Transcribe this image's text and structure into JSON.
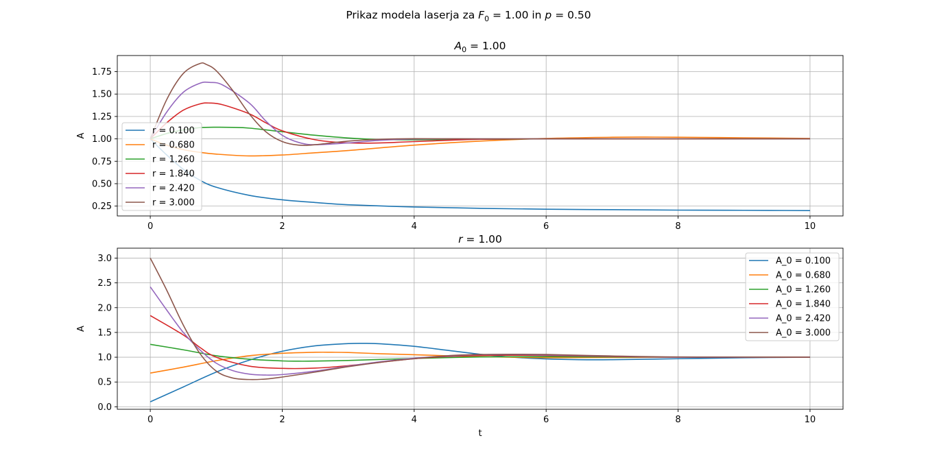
{
  "figure": {
    "suptitle_prefix": "Prikaz modela laserja za ",
    "suptitle_math_1": "F",
    "suptitle_sub_1": "0",
    "suptitle_mid": " = 1.00 in ",
    "suptitle_math_2": "p",
    "suptitle_end": " = 0.50"
  },
  "chart_data": [
    {
      "type": "line",
      "title_math": "A",
      "title_sub": "0",
      "title_rest": " = 1.00",
      "xlabel": "",
      "ylabel": "A",
      "xlim": [
        -0.5,
        10.5
      ],
      "ylim": [
        0.14,
        1.93
      ],
      "x_ticks": [
        0,
        2,
        4,
        6,
        8,
        10
      ],
      "y_ticks": [
        0.25,
        0.5,
        0.75,
        1.0,
        1.25,
        1.5,
        1.75
      ],
      "x_tick_labels": [
        "0",
        "2",
        "4",
        "6",
        "8",
        "10"
      ],
      "y_tick_labels": [
        "0.25",
        "0.50",
        "0.75",
        "1.00",
        "1.25",
        "1.50",
        "1.75"
      ],
      "grid": true,
      "legend_position": "center-left",
      "series": [
        {
          "name": "r = 0.100",
          "color": "#1f77b4",
          "x": [
            0,
            0.25,
            0.5,
            0.75,
            1,
            1.5,
            2,
            2.5,
            3,
            4,
            5,
            6,
            7,
            8,
            9,
            10
          ],
          "y": [
            1.0,
            0.82,
            0.66,
            0.54,
            0.46,
            0.37,
            0.32,
            0.29,
            0.265,
            0.24,
            0.225,
            0.215,
            0.21,
            0.205,
            0.203,
            0.2
          ]
        },
        {
          "name": "r = 0.680",
          "color": "#ff7f0e",
          "x": [
            0,
            0.25,
            0.5,
            0.75,
            1,
            1.5,
            2,
            2.5,
            3,
            4,
            5,
            6,
            7,
            7.5,
            8,
            9,
            10
          ],
          "y": [
            1.0,
            0.93,
            0.88,
            0.85,
            0.83,
            0.81,
            0.82,
            0.845,
            0.87,
            0.93,
            0.975,
            1.005,
            1.018,
            1.02,
            1.018,
            1.012,
            1.005
          ]
        },
        {
          "name": "r = 1.260",
          "color": "#2ca02c",
          "x": [
            0,
            0.25,
            0.5,
            0.75,
            1,
            1.25,
            1.5,
            2,
            2.5,
            3,
            3.5,
            4,
            5,
            6,
            7,
            8,
            10
          ],
          "y": [
            1.0,
            1.06,
            1.1,
            1.125,
            1.13,
            1.128,
            1.12,
            1.08,
            1.04,
            1.01,
            0.993,
            0.99,
            0.995,
            1.0,
            1.0,
            1.0,
            1.0
          ]
        },
        {
          "name": "r = 1.840",
          "color": "#d62728",
          "x": [
            0,
            0.25,
            0.5,
            0.75,
            0.9,
            1.1,
            1.5,
            1.75,
            2,
            2.5,
            3,
            3.5,
            4,
            5,
            6,
            8,
            10
          ],
          "y": [
            1.0,
            1.18,
            1.32,
            1.39,
            1.4,
            1.38,
            1.28,
            1.18,
            1.09,
            0.99,
            0.955,
            0.955,
            0.97,
            0.995,
            1.0,
            1.0,
            1.0
          ]
        },
        {
          "name": "r = 2.420",
          "color": "#9467bd",
          "x": [
            0,
            0.25,
            0.5,
            0.75,
            0.9,
            1.1,
            1.5,
            1.75,
            2,
            2.25,
            2.5,
            3,
            3.5,
            4,
            5,
            6,
            8,
            10
          ],
          "y": [
            1.0,
            1.3,
            1.52,
            1.62,
            1.63,
            1.6,
            1.4,
            1.2,
            1.04,
            0.96,
            0.935,
            0.955,
            0.985,
            0.998,
            1.0,
            1.0,
            1.0,
            1.0
          ]
        },
        {
          "name": "r = 3.000",
          "color": "#8c564b",
          "x": [
            0,
            0.25,
            0.5,
            0.75,
            0.85,
            1,
            1.25,
            1.5,
            1.75,
            2,
            2.25,
            2.5,
            3,
            3.5,
            4,
            5,
            6,
            8,
            10
          ],
          "y": [
            1.0,
            1.44,
            1.73,
            1.84,
            1.83,
            1.76,
            1.54,
            1.28,
            1.08,
            0.97,
            0.93,
            0.935,
            0.975,
            0.995,
            1.002,
            1.0,
            1.0,
            1.0,
            1.0
          ]
        }
      ]
    },
    {
      "type": "line",
      "title_math": "r",
      "title_sub": "",
      "title_rest": " = 1.00",
      "xlabel": "t",
      "ylabel": "A",
      "xlim": [
        -0.5,
        10.5
      ],
      "ylim": [
        -0.05,
        3.2
      ],
      "x_ticks": [
        0,
        2,
        4,
        6,
        8,
        10
      ],
      "y_ticks": [
        0.0,
        0.5,
        1.0,
        1.5,
        2.0,
        2.5,
        3.0
      ],
      "x_tick_labels": [
        "0",
        "2",
        "4",
        "6",
        "8",
        "10"
      ],
      "y_tick_labels": [
        "0.0",
        "0.5",
        "1.0",
        "1.5",
        "2.0",
        "2.5",
        "3.0"
      ],
      "grid": true,
      "legend_position": "top-right",
      "series": [
        {
          "name": "A_0 = 0.100",
          "color": "#1f77b4",
          "x": [
            0,
            0.5,
            1,
            1.5,
            2,
            2.5,
            3,
            3.25,
            3.5,
            4,
            4.5,
            5,
            5.5,
            6,
            6.5,
            7,
            8,
            9,
            10
          ],
          "y": [
            0.1,
            0.4,
            0.7,
            0.94,
            1.12,
            1.23,
            1.275,
            1.28,
            1.27,
            1.22,
            1.14,
            1.06,
            1.0,
            0.965,
            0.95,
            0.95,
            0.97,
            0.99,
            1.0
          ]
        },
        {
          "name": "A_0 = 0.680",
          "color": "#ff7f0e",
          "x": [
            0,
            0.5,
            1,
            1.5,
            2,
            2.5,
            2.75,
            3,
            3.5,
            4,
            5,
            6,
            7,
            8,
            10
          ],
          "y": [
            0.68,
            0.8,
            0.93,
            1.03,
            1.08,
            1.1,
            1.1,
            1.095,
            1.07,
            1.05,
            1.01,
            0.99,
            0.995,
            1.0,
            1.0
          ]
        },
        {
          "name": "A_0 = 1.260",
          "color": "#2ca02c",
          "x": [
            0,
            0.5,
            1,
            1.5,
            2,
            2.25,
            2.5,
            3,
            3.5,
            4,
            5,
            6,
            7,
            8,
            10
          ],
          "y": [
            1.26,
            1.15,
            1.03,
            0.96,
            0.925,
            0.92,
            0.922,
            0.935,
            0.955,
            0.975,
            1.005,
            1.01,
            1.005,
            1.0,
            1.0
          ]
        },
        {
          "name": "A_0 = 1.840",
          "color": "#d62728",
          "x": [
            0,
            0.5,
            0.75,
            1,
            1.5,
            2,
            2.5,
            3,
            3.5,
            4,
            4.5,
            5,
            5.5,
            6,
            7,
            8,
            10
          ],
          "y": [
            1.84,
            1.45,
            1.2,
            1.0,
            0.82,
            0.775,
            0.78,
            0.83,
            0.9,
            0.97,
            1.015,
            1.035,
            1.04,
            1.035,
            1.015,
            1.0,
            1.0
          ]
        },
        {
          "name": "A_0 = 2.420",
          "color": "#9467bd",
          "x": [
            0,
            0.25,
            0.5,
            0.75,
            1,
            1.25,
            1.5,
            1.75,
            2,
            2.5,
            3,
            3.5,
            4,
            4.5,
            5,
            5.5,
            6,
            7,
            8,
            10
          ],
          "y": [
            2.42,
            1.95,
            1.5,
            1.15,
            0.88,
            0.73,
            0.66,
            0.64,
            0.65,
            0.72,
            0.82,
            0.91,
            0.98,
            1.025,
            1.05,
            1.055,
            1.045,
            1.02,
            1.0,
            1.0
          ]
        },
        {
          "name": "A_0 = 3.000",
          "color": "#8c564b",
          "x": [
            0,
            0.25,
            0.5,
            0.75,
            1,
            1.25,
            1.5,
            1.75,
            2,
            2.5,
            3,
            3.5,
            4,
            4.5,
            5,
            5.5,
            6,
            7,
            8,
            10
          ],
          "y": [
            3.0,
            2.35,
            1.65,
            1.08,
            0.72,
            0.58,
            0.55,
            0.56,
            0.6,
            0.7,
            0.81,
            0.9,
            0.97,
            1.03,
            1.055,
            1.06,
            1.055,
            1.025,
            1.005,
            1.0
          ]
        }
      ]
    }
  ]
}
